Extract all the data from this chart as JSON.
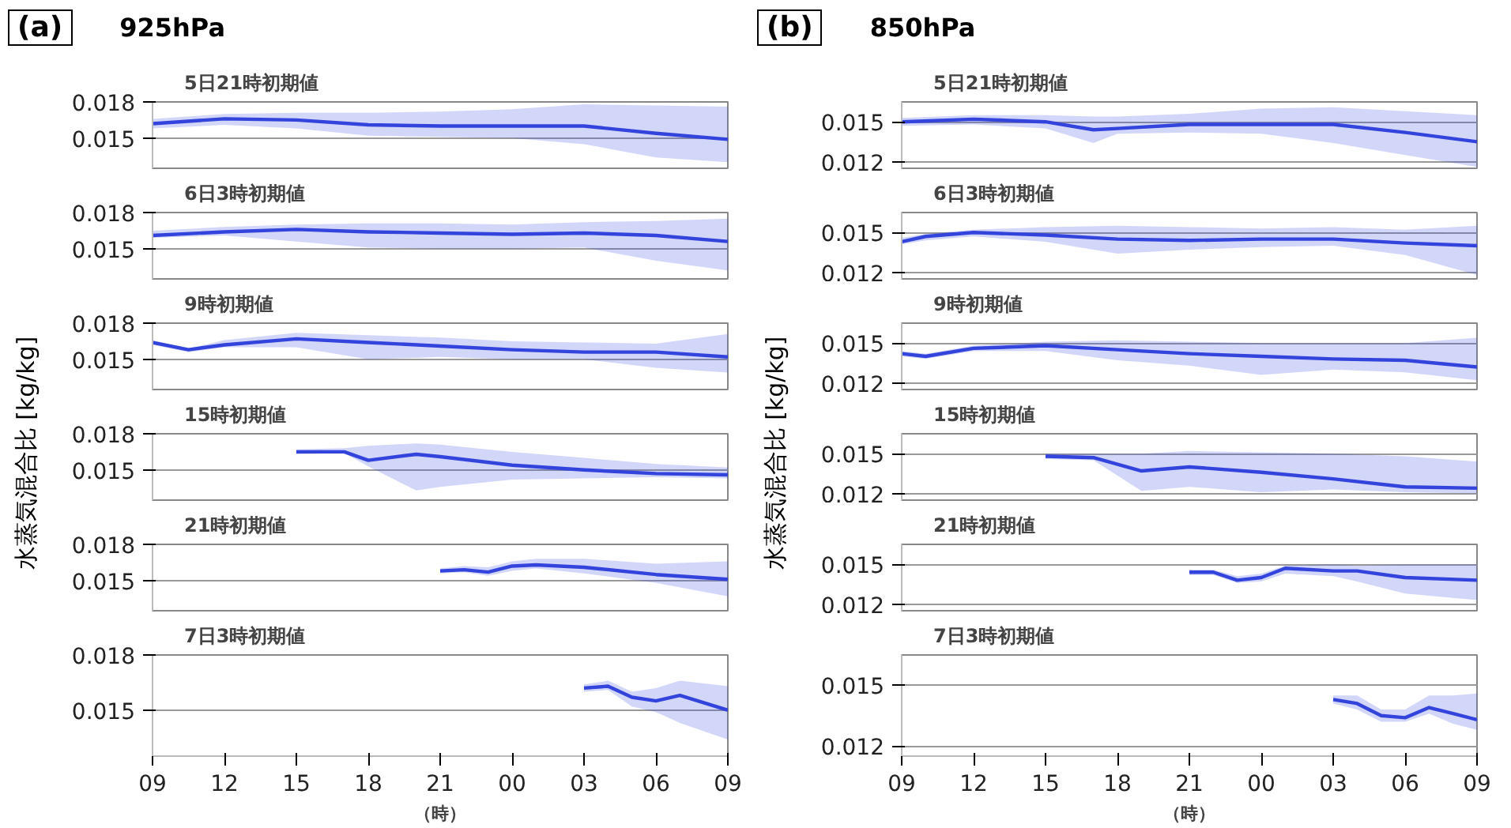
{
  "chart_data": [
    {
      "type": "line",
      "title": "5日21時初期値",
      "annotations": [
        "(a)",
        "925hPa"
      ],
      "xlim": [
        9,
        33
      ],
      "ylim": [
        0.0125,
        0.018
      ],
      "yticks": [
        0.015,
        0.018
      ],
      "grid": "y",
      "tick_labels": "y",
      "series": [
        {
          "color": "#3344dd",
          "x": [
            9,
            12,
            15,
            18,
            21,
            24,
            27,
            30,
            33
          ],
          "values": [
            0.0162,
            0.0166,
            0.0165,
            0.0161,
            0.016,
            0.016,
            0.016,
            0.0154,
            0.0149
          ],
          "lower": [
            0.0158,
            0.0161,
            0.0158,
            0.0152,
            0.0151,
            0.015,
            0.0145,
            0.0134,
            0.013
          ],
          "upper": [
            0.0166,
            0.017,
            0.0171,
            0.0171,
            0.0172,
            0.0174,
            0.0178,
            0.0177,
            0.0176
          ]
        }
      ]
    },
    {
      "type": "line",
      "title": "6日3時初期値",
      "xlim": [
        9,
        33
      ],
      "ylim": [
        0.0125,
        0.018
      ],
      "yticks": [
        0.015,
        0.018
      ],
      "grid": "y",
      "tick_labels": "y",
      "series": [
        {
          "color": "#3344dd",
          "x": [
            9,
            12,
            15,
            18,
            21,
            24,
            27,
            30,
            33
          ],
          "values": [
            0.0161,
            0.0164,
            0.0166,
            0.0164,
            0.0163,
            0.0162,
            0.0163,
            0.0161,
            0.0156
          ],
          "lower": [
            0.0159,
            0.0161,
            0.0156,
            0.0151,
            0.015,
            0.015,
            0.0151,
            0.014,
            0.0132
          ],
          "upper": [
            0.0165,
            0.0168,
            0.017,
            0.0171,
            0.0171,
            0.017,
            0.0172,
            0.0173,
            0.0175
          ]
        }
      ]
    },
    {
      "type": "line",
      "title": "9時初期値",
      "ylabel": "水蒸気混合比  [kg/kg]",
      "xlim": [
        9,
        33
      ],
      "ylim": [
        0.0125,
        0.018
      ],
      "yticks": [
        0.015,
        0.018
      ],
      "grid": "y",
      "tick_labels": "y",
      "series": [
        {
          "color": "#3344dd",
          "x": [
            9,
            10.5,
            12,
            15,
            18,
            21,
            24,
            27,
            30,
            33
          ],
          "values": [
            0.0164,
            0.0158,
            0.0162,
            0.0167,
            0.0164,
            0.0161,
            0.0158,
            0.0156,
            0.0156,
            0.0152
          ],
          "lower": [
            0.0162,
            0.0156,
            0.016,
            0.016,
            0.015,
            0.0152,
            0.015,
            0.015,
            0.0143,
            0.0139
          ],
          "upper": [
            0.0165,
            0.0159,
            0.0166,
            0.0172,
            0.017,
            0.0168,
            0.0165,
            0.0164,
            0.0163,
            0.0171
          ]
        }
      ]
    },
    {
      "type": "line",
      "title": "15時初期値",
      "xlim": [
        9,
        33
      ],
      "ylim": [
        0.0125,
        0.018
      ],
      "yticks": [
        0.015,
        0.018
      ],
      "grid": "y",
      "tick_labels": "y",
      "series": [
        {
          "color": "#3344dd",
          "x": [
            15,
            17,
            18,
            20,
            21,
            24,
            27,
            30,
            33
          ],
          "values": [
            0.0165,
            0.0165,
            0.0158,
            0.0163,
            0.0161,
            0.0154,
            0.015,
            0.0147,
            0.0146
          ],
          "lower": [
            0.0163,
            0.0164,
            0.0153,
            0.0133,
            0.0136,
            0.0142,
            0.0143,
            0.0144,
            0.0143
          ],
          "upper": [
            0.0167,
            0.0168,
            0.017,
            0.0172,
            0.0171,
            0.0165,
            0.016,
            0.0155,
            0.0152
          ]
        }
      ]
    },
    {
      "type": "line",
      "title": "21時初期値",
      "xlim": [
        9,
        33
      ],
      "ylim": [
        0.0125,
        0.018
      ],
      "yticks": [
        0.015,
        0.018
      ],
      "grid": "y",
      "tick_labels": "y",
      "series": [
        {
          "color": "#3344dd",
          "x": [
            21,
            22,
            23,
            24,
            25,
            27,
            30,
            33
          ],
          "values": [
            0.0158,
            0.0159,
            0.0157,
            0.0162,
            0.0163,
            0.0161,
            0.0155,
            0.0151
          ],
          "lower": [
            0.0156,
            0.0157,
            0.0154,
            0.0158,
            0.016,
            0.0156,
            0.0148,
            0.0137
          ],
          "upper": [
            0.016,
            0.0162,
            0.0161,
            0.0166,
            0.0168,
            0.0168,
            0.0164,
            0.0166
          ]
        }
      ]
    },
    {
      "type": "line",
      "title": "7日3時初期値",
      "xlabel": "（時）",
      "xlim": [
        9,
        33
      ],
      "xticks": [
        {
          "value": 9,
          "label": "09"
        },
        12,
        15,
        18,
        21,
        {
          "value": 24,
          "label": "00"
        },
        {
          "value": 27,
          "label": "03"
        },
        {
          "value": 30,
          "label": "06"
        },
        {
          "value": 33,
          "label": "09"
        }
      ],
      "ylim": [
        0.0125,
        0.018
      ],
      "yticks": [
        0.015,
        0.018
      ],
      "grid": "y",
      "series": [
        {
          "color": "#3344dd",
          "x": [
            27,
            28,
            29,
            30,
            31,
            33
          ],
          "values": [
            0.0162,
            0.0163,
            0.0157,
            0.0155,
            0.0158,
            0.015
          ],
          "lower": [
            0.016,
            0.0161,
            0.0152,
            0.0149,
            0.0143,
            0.0134
          ],
          "upper": [
            0.0164,
            0.0166,
            0.016,
            0.0162,
            0.0166,
            0.0163
          ]
        }
      ]
    },
    {
      "type": "line",
      "title": "5日21時初期値",
      "annotations": [
        "(b)",
        "850hPa"
      ],
      "xlim": [
        9,
        33
      ],
      "ylim": [
        0.0115,
        0.0165
      ],
      "yticks": [
        0.012,
        0.015
      ],
      "grid": "y",
      "tick_labels": "y",
      "series": [
        {
          "color": "#3344dd",
          "x": [
            9,
            12,
            15,
            17,
            18,
            21,
            24,
            27,
            30,
            33
          ],
          "values": [
            0.015,
            0.0152,
            0.015,
            0.0144,
            0.0145,
            0.0148,
            0.0148,
            0.0148,
            0.0142,
            0.0135
          ],
          "lower": [
            0.0147,
            0.0148,
            0.0145,
            0.0134,
            0.0141,
            0.0142,
            0.0141,
            0.0134,
            0.0125,
            0.0116
          ],
          "upper": [
            0.0153,
            0.0155,
            0.0155,
            0.0154,
            0.0154,
            0.0156,
            0.016,
            0.0161,
            0.0158,
            0.0155
          ]
        }
      ]
    },
    {
      "type": "line",
      "title": "6日3時初期値",
      "xlim": [
        9,
        33
      ],
      "ylim": [
        0.0115,
        0.0165
      ],
      "yticks": [
        0.012,
        0.015
      ],
      "grid": "y",
      "tick_labels": "y",
      "series": [
        {
          "color": "#3344dd",
          "x": [
            9,
            10,
            12,
            15,
            18,
            21,
            24,
            27,
            30,
            33
          ],
          "values": [
            0.0143,
            0.0147,
            0.015,
            0.0148,
            0.0145,
            0.0144,
            0.0145,
            0.0145,
            0.0142,
            0.014
          ],
          "lower": [
            0.0141,
            0.0144,
            0.0147,
            0.0143,
            0.0134,
            0.0137,
            0.0139,
            0.014,
            0.0133,
            0.0118
          ],
          "upper": [
            0.0146,
            0.0149,
            0.0152,
            0.0154,
            0.0155,
            0.0154,
            0.0153,
            0.0154,
            0.0152,
            0.0155
          ]
        }
      ]
    },
    {
      "type": "line",
      "title": "9時初期値",
      "ylabel": "水蒸気混合比  [kg/kg]",
      "xlim": [
        9,
        33
      ],
      "ylim": [
        0.0115,
        0.0165
      ],
      "yticks": [
        0.012,
        0.015
      ],
      "grid": "y",
      "tick_labels": "y",
      "series": [
        {
          "color": "#3344dd",
          "x": [
            9,
            10,
            12,
            15,
            18,
            21,
            24,
            27,
            30,
            33
          ],
          "values": [
            0.0142,
            0.014,
            0.0146,
            0.0148,
            0.0145,
            0.0142,
            0.014,
            0.0138,
            0.0137,
            0.0132
          ],
          "lower": [
            0.014,
            0.0138,
            0.0144,
            0.0144,
            0.0137,
            0.0133,
            0.0126,
            0.013,
            0.0128,
            0.0122
          ],
          "upper": [
            0.0144,
            0.0142,
            0.0148,
            0.0151,
            0.0152,
            0.0151,
            0.015,
            0.015,
            0.015,
            0.0154
          ]
        }
      ]
    },
    {
      "type": "line",
      "title": "15時初期値",
      "xlim": [
        9,
        33
      ],
      "ylim": [
        0.0115,
        0.0165
      ],
      "yticks": [
        0.012,
        0.015
      ],
      "grid": "y",
      "tick_labels": "y",
      "series": [
        {
          "color": "#3344dd",
          "x": [
            15,
            17,
            19,
            21,
            24,
            27,
            30,
            33
          ],
          "values": [
            0.0148,
            0.0147,
            0.0137,
            0.014,
            0.0136,
            0.0131,
            0.0125,
            0.0124
          ],
          "lower": [
            0.0146,
            0.0145,
            0.0122,
            0.0125,
            0.0121,
            0.0123,
            0.0121,
            0.012
          ],
          "upper": [
            0.015,
            0.015,
            0.015,
            0.0152,
            0.0151,
            0.015,
            0.0148,
            0.0144
          ]
        }
      ]
    },
    {
      "type": "line",
      "title": "21時初期値",
      "xlim": [
        9,
        33
      ],
      "ylim": [
        0.0115,
        0.0165
      ],
      "yticks": [
        0.012,
        0.015
      ],
      "grid": "y",
      "tick_labels": "y",
      "series": [
        {
          "color": "#3344dd",
          "x": [
            21,
            22,
            23,
            24,
            25,
            27,
            28,
            30,
            33
          ],
          "values": [
            0.0144,
            0.0144,
            0.0138,
            0.014,
            0.0147,
            0.0145,
            0.0145,
            0.014,
            0.0138
          ],
          "lower": [
            0.0142,
            0.0142,
            0.0136,
            0.0137,
            0.0143,
            0.0141,
            0.0137,
            0.0128,
            0.0123
          ],
          "upper": [
            0.0146,
            0.0146,
            0.0141,
            0.0143,
            0.0149,
            0.015,
            0.0149,
            0.015,
            0.015
          ]
        }
      ]
    },
    {
      "type": "line",
      "title": "7日3時初期値",
      "xlabel": "（時）",
      "xlim": [
        9,
        33
      ],
      "xticks": [
        {
          "value": 9,
          "label": "09"
        },
        12,
        15,
        18,
        21,
        {
          "value": 24,
          "label": "00"
        },
        {
          "value": 27,
          "label": "03"
        },
        {
          "value": 30,
          "label": "06"
        },
        {
          "value": 33,
          "label": "09"
        }
      ],
      "ylim": [
        0.0115,
        0.0165
      ],
      "yticks": [
        0.012,
        0.015
      ],
      "grid": "y",
      "series": [
        {
          "color": "#3344dd",
          "x": [
            27,
            28,
            29,
            30,
            31,
            32,
            33
          ],
          "values": [
            0.0143,
            0.0141,
            0.0135,
            0.0134,
            0.0139,
            0.0136,
            0.0133
          ],
          "lower": [
            0.0141,
            0.0138,
            0.0132,
            0.0132,
            0.0136,
            0.0131,
            0.0128
          ],
          "upper": [
            0.0145,
            0.0145,
            0.0138,
            0.0138,
            0.0145,
            0.0145,
            0.0146
          ]
        }
      ]
    }
  ]
}
